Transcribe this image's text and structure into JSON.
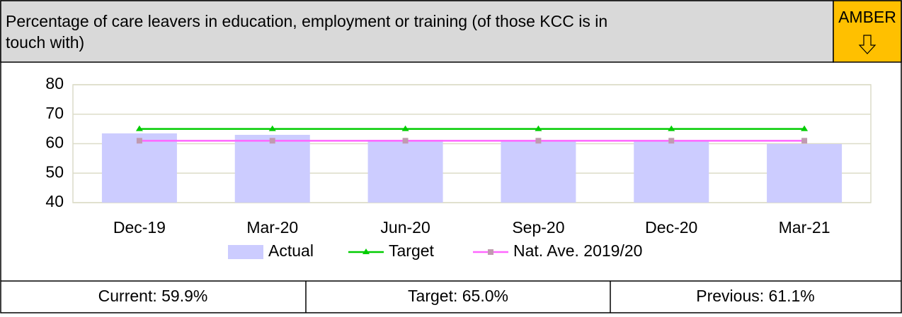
{
  "header": {
    "title": "Percentage of care leavers in education, employment or training (of those KCC is in touch with)",
    "status": "AMBER"
  },
  "chart_data": {
    "type": "bar",
    "categories": [
      "Dec-19",
      "Mar-20",
      "Jun-20",
      "Sep-20",
      "Dec-20",
      "Mar-21"
    ],
    "series": [
      {
        "name": "Actual",
        "type": "bar",
        "color": "#ccccff",
        "values": [
          63.5,
          63,
          61.3,
          61.2,
          61.1,
          59.9
        ]
      },
      {
        "name": "Target",
        "type": "line",
        "color": "#00cc00",
        "values": [
          65,
          65,
          65,
          65,
          65,
          65
        ]
      },
      {
        "name": "Nat. Ave. 2019/20",
        "type": "line",
        "color": "#ff66ff",
        "values": [
          61,
          61,
          61,
          61,
          61,
          61
        ]
      }
    ],
    "ylim": [
      40,
      80
    ],
    "yticks": [
      40,
      50,
      60,
      70,
      80
    ],
    "grid": true,
    "legend": "bottom"
  },
  "footer": [
    "Current: 59.9%",
    "Target: 65.0%",
    "Previous: 61.1%"
  ]
}
